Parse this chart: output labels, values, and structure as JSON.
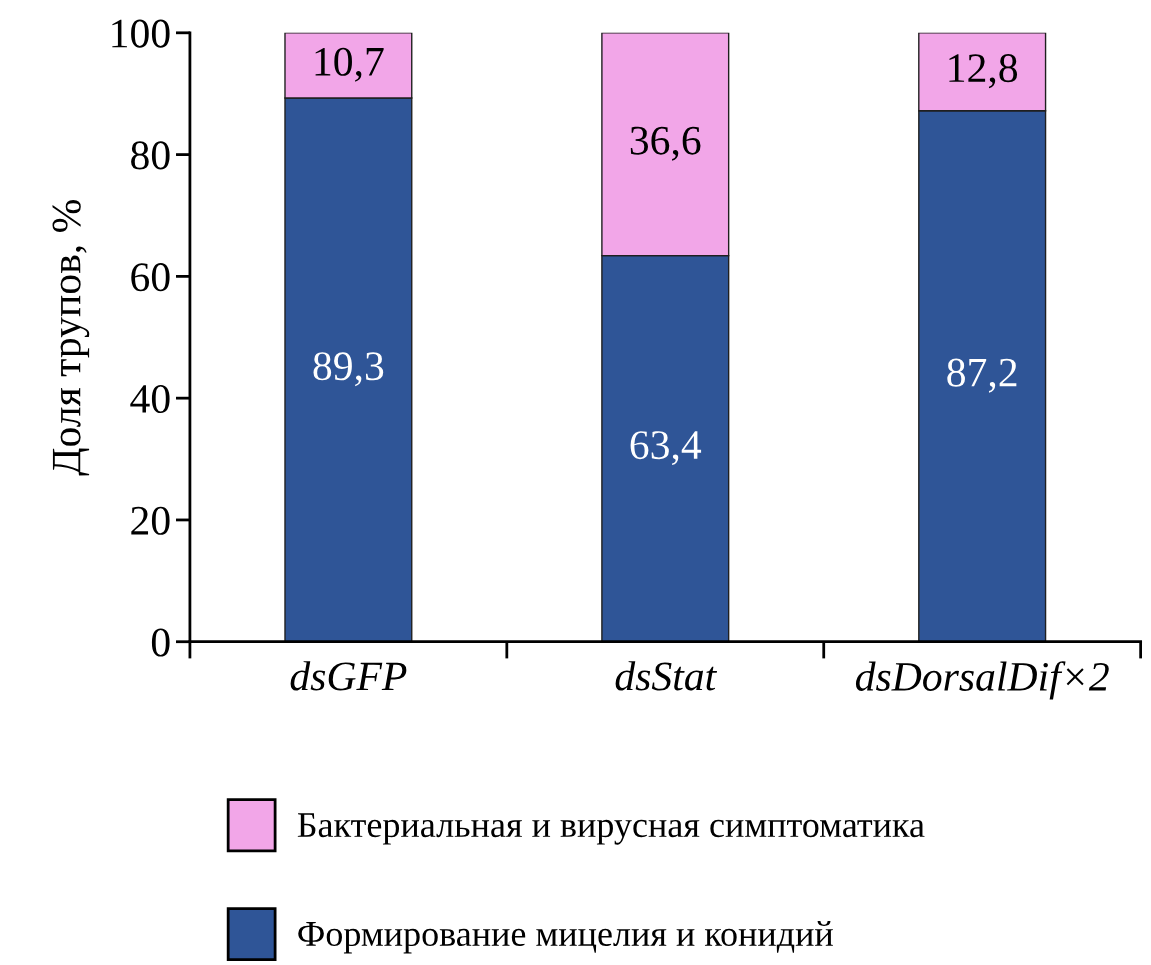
{
  "chart_data": {
    "type": "bar",
    "stacked": true,
    "ylabel": "Доля трупов, %",
    "categories": [
      "dsGFP",
      "dsStat",
      "dsDorsalDif×2"
    ],
    "series": [
      {
        "name": "Формирование мицелия и конидий",
        "color": "#2f5597",
        "values": [
          89.3,
          63.4,
          87.2
        ],
        "value_labels": [
          "89,3",
          "63,4",
          "87,2"
        ]
      },
      {
        "name": "Бактериальная и вирусная симптоматика",
        "color": "#f2a6e8",
        "values": [
          10.7,
          36.6,
          12.8
        ],
        "value_labels": [
          "10,7",
          "36,6",
          "12,8"
        ]
      }
    ],
    "ylim": [
      0,
      100
    ],
    "yticks": [
      0,
      20,
      40,
      60,
      80,
      100
    ],
    "grid": false,
    "legend": "bottom"
  }
}
